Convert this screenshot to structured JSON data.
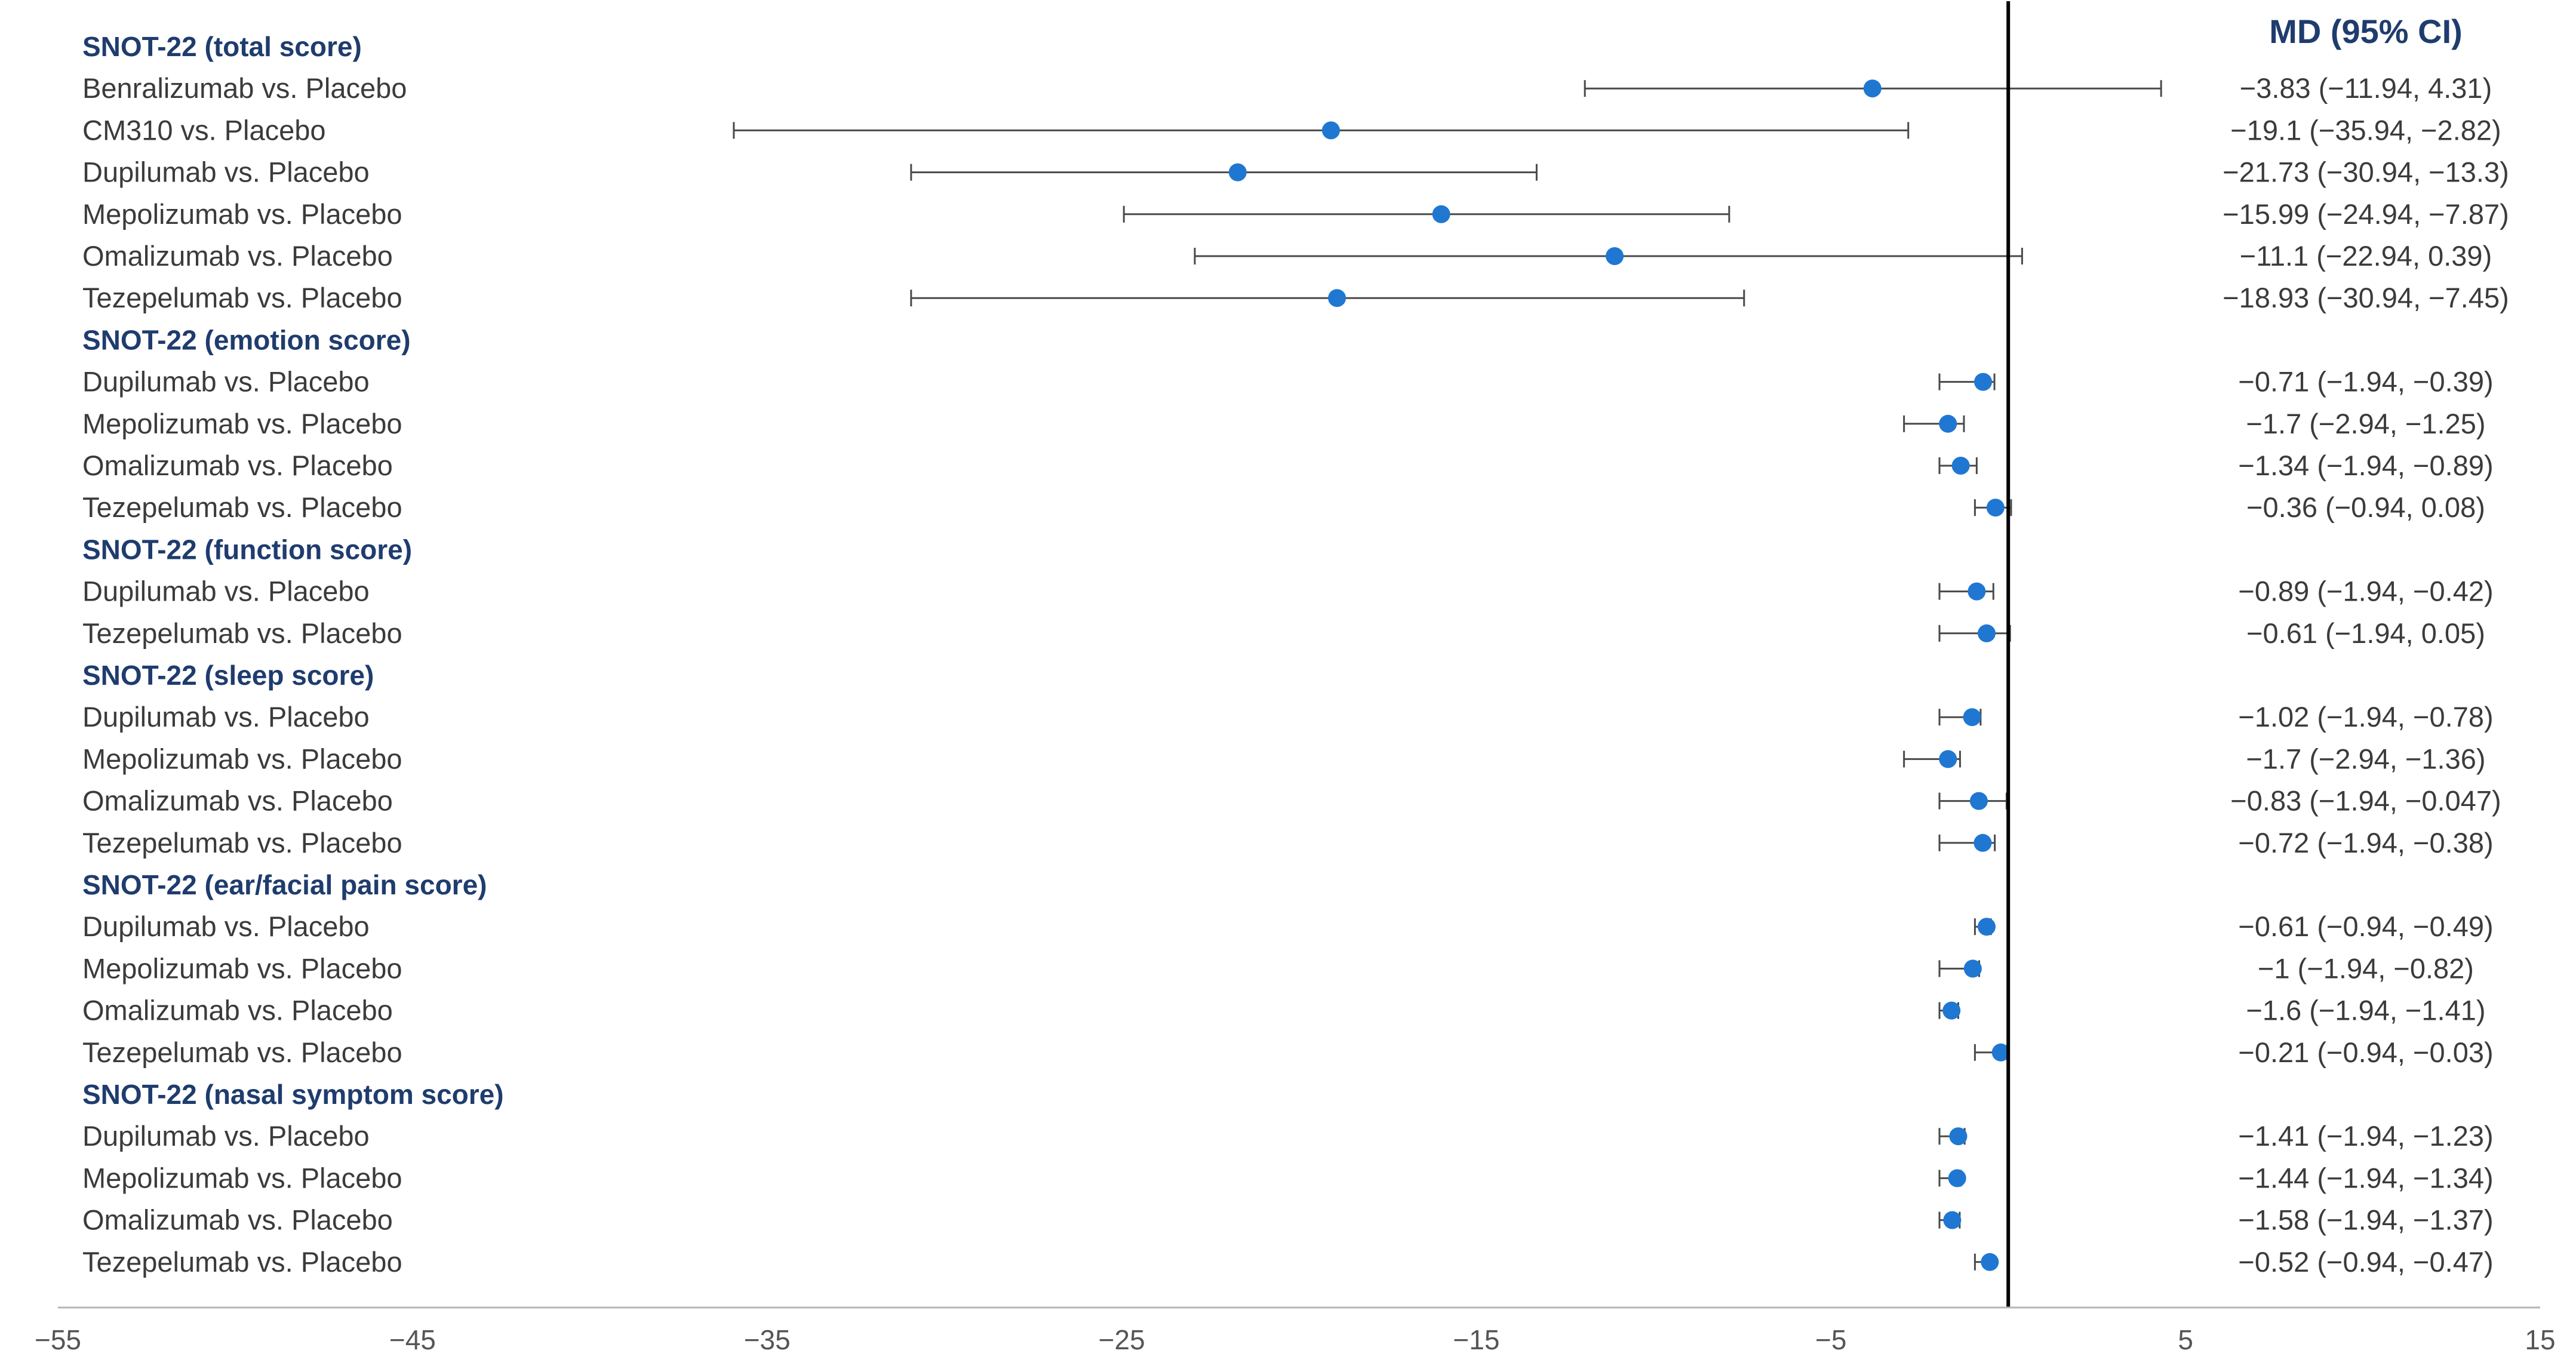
{
  "chart_data": {
    "type": "forest",
    "estimate_header": "MD (95% CI)",
    "xlim": [
      -55,
      15
    ],
    "x_ticks": [
      "−55",
      "−45",
      "−35",
      "−25",
      "−15",
      "−5",
      "5",
      "15"
    ],
    "reference_line": 0,
    "colors": {
      "point": "#1f77d2",
      "header": "#1f3c6e",
      "text": "#3b3b3b",
      "line": "#000000"
    },
    "groups": [
      {
        "title": "SNOT-22 (total score)",
        "rows": [
          {
            "label": "Benralizumab vs. Placebo",
            "md": -3.83,
            "lo": -11.94,
            "hi": 4.31,
            "text": "−3.83 (−11.94, 4.31)"
          },
          {
            "label": "CM310 vs. Placebo",
            "md": -19.1,
            "lo": -35.94,
            "hi": -2.82,
            "text": "−19.1 (−35.94, −2.82)"
          },
          {
            "label": "Dupilumab vs. Placebo",
            "md": -21.73,
            "lo": -30.94,
            "hi": -13.3,
            "text": "−21.73 (−30.94, −13.3)"
          },
          {
            "label": "Mepolizumab vs. Placebo",
            "md": -15.99,
            "lo": -24.94,
            "hi": -7.87,
            "text": "−15.99 (−24.94, −7.87)"
          },
          {
            "label": "Omalizumab vs. Placebo",
            "md": -11.1,
            "lo": -22.94,
            "hi": 0.39,
            "text": "−11.1 (−22.94, 0.39)"
          },
          {
            "label": "Tezepelumab vs. Placebo",
            "md": -18.93,
            "lo": -30.94,
            "hi": -7.45,
            "text": "−18.93 (−30.94, −7.45)"
          }
        ]
      },
      {
        "title": "SNOT-22 (emotion score)",
        "rows": [
          {
            "label": "Dupilumab vs. Placebo",
            "md": -0.71,
            "lo": -1.94,
            "hi": -0.39,
            "text": "−0.71 (−1.94, −0.39)"
          },
          {
            "label": "Mepolizumab vs. Placebo",
            "md": -1.7,
            "lo": -2.94,
            "hi": -1.25,
            "text": "−1.7 (−2.94, −1.25)"
          },
          {
            "label": "Omalizumab vs. Placebo",
            "md": -1.34,
            "lo": -1.94,
            "hi": -0.89,
            "text": "−1.34 (−1.94, −0.89)"
          },
          {
            "label": "Tezepelumab vs. Placebo",
            "md": -0.36,
            "lo": -0.94,
            "hi": 0.08,
            "text": "−0.36 (−0.94, 0.08)"
          }
        ]
      },
      {
        "title": "SNOT-22 (function score)",
        "rows": [
          {
            "label": "Dupilumab vs. Placebo",
            "md": -0.89,
            "lo": -1.94,
            "hi": -0.42,
            "text": "−0.89 (−1.94, −0.42)"
          },
          {
            "label": "Tezepelumab vs. Placebo",
            "md": -0.61,
            "lo": -1.94,
            "hi": 0.05,
            "text": "−0.61 (−1.94, 0.05)"
          }
        ]
      },
      {
        "title": "SNOT-22 (sleep score)",
        "rows": [
          {
            "label": "Dupilumab vs. Placebo",
            "md": -1.02,
            "lo": -1.94,
            "hi": -0.78,
            "text": "−1.02 (−1.94, −0.78)"
          },
          {
            "label": "Mepolizumab vs. Placebo",
            "md": -1.7,
            "lo": -2.94,
            "hi": -1.36,
            "text": "−1.7 (−2.94, −1.36)"
          },
          {
            "label": "Omalizumab vs. Placebo",
            "md": -0.83,
            "lo": -1.94,
            "hi": -0.047,
            "text": "−0.83 (−1.94, −0.047)"
          },
          {
            "label": "Tezepelumab vs. Placebo",
            "md": -0.72,
            "lo": -1.94,
            "hi": -0.38,
            "text": "−0.72 (−1.94, −0.38)"
          }
        ]
      },
      {
        "title": "SNOT-22 (ear/facial pain score)",
        "rows": [
          {
            "label": "Dupilumab vs. Placebo",
            "md": -0.61,
            "lo": -0.94,
            "hi": -0.49,
            "text": "−0.61 (−0.94, −0.49)"
          },
          {
            "label": "Mepolizumab vs. Placebo",
            "md": -1,
            "lo": -1.94,
            "hi": -0.82,
            "text": "−1 (−1.94, −0.82)"
          },
          {
            "label": "Omalizumab vs. Placebo",
            "md": -1.6,
            "lo": -1.94,
            "hi": -1.41,
            "text": "−1.6 (−1.94, −1.41)"
          },
          {
            "label": "Tezepelumab vs. Placebo",
            "md": -0.21,
            "lo": -0.94,
            "hi": -0.03,
            "text": "−0.21 (−0.94, −0.03)"
          }
        ]
      },
      {
        "title": "SNOT-22 (nasal symptom score)",
        "rows": [
          {
            "label": "Dupilumab vs. Placebo",
            "md": -1.41,
            "lo": -1.94,
            "hi": -1.23,
            "text": "−1.41 (−1.94, −1.23)"
          },
          {
            "label": "Mepolizumab vs. Placebo",
            "md": -1.44,
            "lo": -1.94,
            "hi": -1.34,
            "text": "−1.44 (−1.94, −1.34)"
          },
          {
            "label": "Omalizumab vs. Placebo",
            "md": -1.58,
            "lo": -1.94,
            "hi": -1.37,
            "text": "−1.58 (−1.94, −1.37)"
          },
          {
            "label": "Tezepelumab vs. Placebo",
            "md": -0.52,
            "lo": -0.94,
            "hi": -0.47,
            "text": "−0.52 (−0.94, −0.47)"
          }
        ]
      }
    ]
  }
}
